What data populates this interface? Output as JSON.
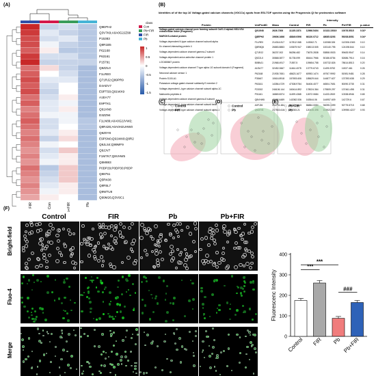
{
  "panels": {
    "a": "(A)",
    "b": "(B)",
    "c": "(C)",
    "d": "(D)",
    "e": "(E)",
    "f": "(F)"
  },
  "heatmap": {
    "columns": [
      "FIR",
      "Con",
      "Pb+FIR",
      "Pb"
    ],
    "rows": [
      "Q9EPH2",
      "Q3V7K9;A0A0G2JZ99",
      "P15383",
      "Q8R1B5",
      "P62168",
      "P63161",
      "P15791",
      "Q8ZZL0",
      "F1LRE0",
      "Q71RJ2;Q99PR9",
      "D4ADV7",
      "E9PTS0;Q91WX9",
      "A1EA77",
      "E9PTK1",
      "Q91XN8",
      "D3ZZ94",
      "F1LN89;A0A0G2JVW2;",
      "Q8R426;A0A0H2UHW0",
      "Q9Z0Y8",
      "E9PSN0;Q91WX8;Q8R2",
      "Q9JLS4;Q99MF9",
      "Q9JJV7",
      "F1M7K7;Q8VHW5",
      "Q5M883",
      "P0DP29;P0DP30;P0DP",
      "Q88751",
      "Q5RK08",
      "Q8R5L7",
      "Q9WTU8",
      "Q99M26;Q3V9C1"
    ],
    "legend_title": "class",
    "legend_items": [
      {
        "label": "Con",
        "color": "#d4184a"
      },
      {
        "label": "Pb+FIR",
        "color": "#3a9c5a"
      },
      {
        "label": "FIR",
        "color": "#2f4fa8"
      },
      {
        "label": "Pb",
        "color": "#46b4d6"
      }
    ],
    "scale_ticks": [
      "1",
      "0.5",
      "0",
      "-0.5",
      "-1",
      "-1.5"
    ],
    "values": [
      [
        1.2,
        -0.4,
        -0.3,
        -0.5
      ],
      [
        1.1,
        -0.2,
        -0.4,
        -0.5
      ],
      [
        1.0,
        -0.3,
        -0.2,
        -0.5
      ],
      [
        1.0,
        -0.1,
        -0.4,
        -0.5
      ],
      [
        0.9,
        0.1,
        -0.5,
        -0.5
      ],
      [
        1.1,
        -0.3,
        -0.3,
        -0.5
      ],
      [
        1.2,
        -0.4,
        -0.4,
        -0.4
      ],
      [
        0.8,
        0.2,
        -0.4,
        -0.6
      ],
      [
        0.9,
        0.0,
        -0.3,
        -0.6
      ],
      [
        1.0,
        -0.2,
        -0.2,
        -0.6
      ],
      [
        0.9,
        -0.3,
        0.0,
        -0.6
      ],
      [
        1.0,
        -0.4,
        0.0,
        -0.6
      ],
      [
        0.8,
        -0.3,
        0.1,
        -0.6
      ],
      [
        0.9,
        -0.2,
        -0.1,
        -0.6
      ],
      [
        0.7,
        -0.2,
        0.1,
        -0.6
      ],
      [
        0.8,
        -0.1,
        -0.1,
        -0.6
      ],
      [
        0.9,
        -0.3,
        -0.1,
        -0.5
      ],
      [
        0.8,
        -0.3,
        0.0,
        -0.5
      ],
      [
        0.7,
        -0.2,
        0.1,
        -0.6
      ],
      [
        0.8,
        -0.4,
        0.2,
        -0.6
      ],
      [
        0.7,
        -0.1,
        0.0,
        -0.6
      ],
      [
        0.6,
        -0.3,
        0.3,
        -0.6
      ],
      [
        0.7,
        -0.2,
        0.1,
        -0.6
      ],
      [
        0.6,
        -0.1,
        0.1,
        -0.6
      ],
      [
        0.8,
        -0.5,
        0.3,
        -0.6
      ],
      [
        0.7,
        -0.4,
        0.3,
        -0.6
      ],
      [
        0.6,
        -0.3,
        0.3,
        -0.6
      ],
      [
        0.7,
        -0.2,
        0.1,
        -0.6
      ],
      [
        0.6,
        -0.1,
        0.1,
        -0.6
      ],
      [
        0.5,
        0.1,
        0.0,
        -0.6
      ]
    ]
  },
  "table": {
    "caption": "Identities of of the top 16 Voltage-gated calcium channels (VGCCs) spots from ESI-TOF spectra using the Progenesis QI for proteomics software",
    "header_intensity": "Intensity",
    "headers": [
      "Protein",
      "UniProtID",
      "Mass",
      "Control",
      "FIR",
      "Pb",
      "Pb+FIR",
      "p-value"
    ],
    "rows": [
      {
        "protein": "Voltage-gated calcium channel pore forming subunit CaV1.3 alpha1 NS3-VS4 extracellular linker (Fragment)",
        "id": "Q91XN8",
        "mass": "2626.7306",
        "control": "11135.1874",
        "fir": "12966.5404",
        "pb": "10133.15019",
        "pbfir": "10076.5515",
        "p": "0.02*",
        "bold": true
      },
      {
        "protein": "MARCKS-related protein",
        "id": "Q8EPH2",
        "mass": "19606.1666",
        "control": "48849.0596",
        "fir": "66130.0712",
        "pb": "48085.8293",
        "pbfir": "59208.8051",
        "p": "0.04*",
        "bold": true
      },
      {
        "protein": "Voltage-dependent N-type calcium channel subunit alpha",
        "id": "F1LRE0",
        "mass": "214314.817",
        "control": "117812.068",
        "fir": "143062.71",
        "pb": "110068.326",
        "pbfir": "112306.1945",
        "p": "0.10",
        "bold": false
      },
      {
        "protein": "Kv channel-interacting protein 4",
        "id": "Q8R8Q6",
        "mass": "26883.8883",
        "control": "103679.947",
        "fir": "158013.505",
        "pb": "100140.795",
        "pbfir": "124198.844",
        "p": "0.10",
        "bold": false
      },
      {
        "protein": "Voltage-dependent calcium channel gamma-2 subunit",
        "id": "Q71RJ2",
        "mass": "36237.002",
        "control": "56256.482",
        "fir": "73675.2838",
        "pb": "53858.0533",
        "pbfir": "59483.9547",
        "p": "0.14",
        "bold": false
      },
      {
        "protein": "Voltage-dependent anion-selective channel protein 1",
        "id": "Q9Z2L0",
        "mass": "30868.0877",
        "control": "51735.099",
        "fir": "65444.7966",
        "pb": "50186.8754",
        "pbfir": "52686.7914",
        "p": "0.16",
        "bold": false
      },
      {
        "protein": "LOC683667 protein",
        "id": "B0BNJ1",
        "mass": "21968.4917",
        "control": "71557.5",
        "fir": "109654.758",
        "pb": "100732.826",
        "pbfir": "78614.8513",
        "p": "0.20",
        "bold": false
      },
      {
        "protein": "Voltage-dependent calcium channel T type alpha 1G subunit domain II (Fragment)",
        "id": "A1EA77",
        "mass": "32452.0667",
        "control": "11464.4078",
        "fir": "13779.6743",
        "pb": "11490.5752",
        "pbfir": "11537.461",
        "p": "0.26",
        "bold": false
      },
      {
        "protein": "Neuronal calcium sensor 1",
        "id": "P62168",
        "mass": "21935.7651",
        "control": "48623.1677",
        "fir": "60953.1474",
        "pb": "49767.9992",
        "pbfir": "51981.9481",
        "p": "0.28",
        "bold": false
      },
      {
        "protein": "Protein S100-A1",
        "id": "P35467",
        "mass": "10616.8918",
        "control": "157693.606",
        "fir": "185629.644",
        "pb": "144877.627",
        "pbfir": "137393.638",
        "p": "0.29",
        "bold": false
      },
      {
        "protein": "Potassium voltage-gated channel subfamily E member 2",
        "id": "P63161",
        "mass": "14356.4729",
        "control": "47308.9784",
        "fir": "54406.4077",
        "pb": "46504.7651",
        "pbfir": "50090.3735",
        "p": "0.31",
        "bold": false
      },
      {
        "protein": "Voltage-dependent L-type calcium channel subunit alpha-1C",
        "id": "P22002",
        "mass": "246106.144",
        "control": "160414.892",
        "fir": "178024.364",
        "pb": "179809.297",
        "pbfir": "137461.498",
        "p": "0.31",
        "bold": false
      },
      {
        "protein": "Natriuretic peptides A",
        "id": "P01161",
        "mass": "16869.8374",
        "control": "11499.4368",
        "fir": "12672.0684",
        "pb": "11433.2819",
        "pbfir": "10338.6946",
        "p": "0.65",
        "bold": false
      },
      {
        "protein": "Voltage-dependent calcium channel gamma-8 subunit",
        "id": "Q8VHW5",
        "mass": "43082.6489",
        "control": "142082.536",
        "fir": "163544.06",
        "pb": "144957.609",
        "pbfir": "142729.6",
        "p": "0.67",
        "bold": false
      },
      {
        "protein": "Voltage-dependent L-type calcium channel subunit beta",
        "id": "A0FJ26",
        "mass": "264791.484",
        "control": "86277.0013",
        "fir": "86884.0084",
        "pb": "94095.1099",
        "pbfir": "92775.5715",
        "p": "0.68",
        "bold": false
      },
      {
        "protein": "Voltage-dependent T-type calcium channel subunit alpha-1",
        "id": "Q9Z0Y8",
        "mass": "247543.616",
        "control": "117283.21",
        "fir": "120435.498",
        "pb": "104921.857",
        "pbfir": "109950.4227",
        "p": "0.93",
        "bold": false
      }
    ]
  },
  "pca": [
    {
      "legend": [
        "Control",
        "FIR"
      ],
      "colors": [
        "#f4a6b4",
        "#9fd3a0"
      ]
    },
    {
      "legend": [
        "Control",
        "Pb"
      ],
      "colors": [
        "#f4a6b4",
        "#9fd3a0"
      ]
    },
    {
      "legend": [
        "Pb+FIR",
        "Pb"
      ],
      "colors": [
        "#f4a6b4",
        "#9fd3a0"
      ]
    }
  ],
  "micrographs": {
    "columns": [
      "Control",
      "FIR",
      "Pb",
      "Pb+FIR"
    ],
    "rows": [
      "Bright-field",
      "Fluo-4",
      "Merge"
    ],
    "fluo_density": [
      0.55,
      0.8,
      0.3,
      0.55
    ]
  },
  "chart_data": {
    "type": "bar",
    "categories": [
      "Control",
      "FIR",
      "Pb",
      "Pb+FIR"
    ],
    "values": [
      175,
      260,
      88,
      165
    ],
    "errors": [
      10,
      12,
      9,
      10
    ],
    "colors": [
      "#ffffff",
      "#a9a9a9",
      "#f07c7c",
      "#2e62b8"
    ],
    "ylabel": "Fluorescenc Intensity",
    "yticks": [
      "0",
      "100",
      "200",
      "300",
      "400"
    ],
    "ylim": [
      0,
      400
    ],
    "significance": [
      {
        "pair": [
          "Control",
          "FIR"
        ],
        "label": "***"
      },
      {
        "pair": [
          "Control",
          "Pb"
        ],
        "label": "***"
      },
      {
        "pair": [
          "Pb",
          "Pb+FIR"
        ],
        "label": "###"
      }
    ]
  }
}
